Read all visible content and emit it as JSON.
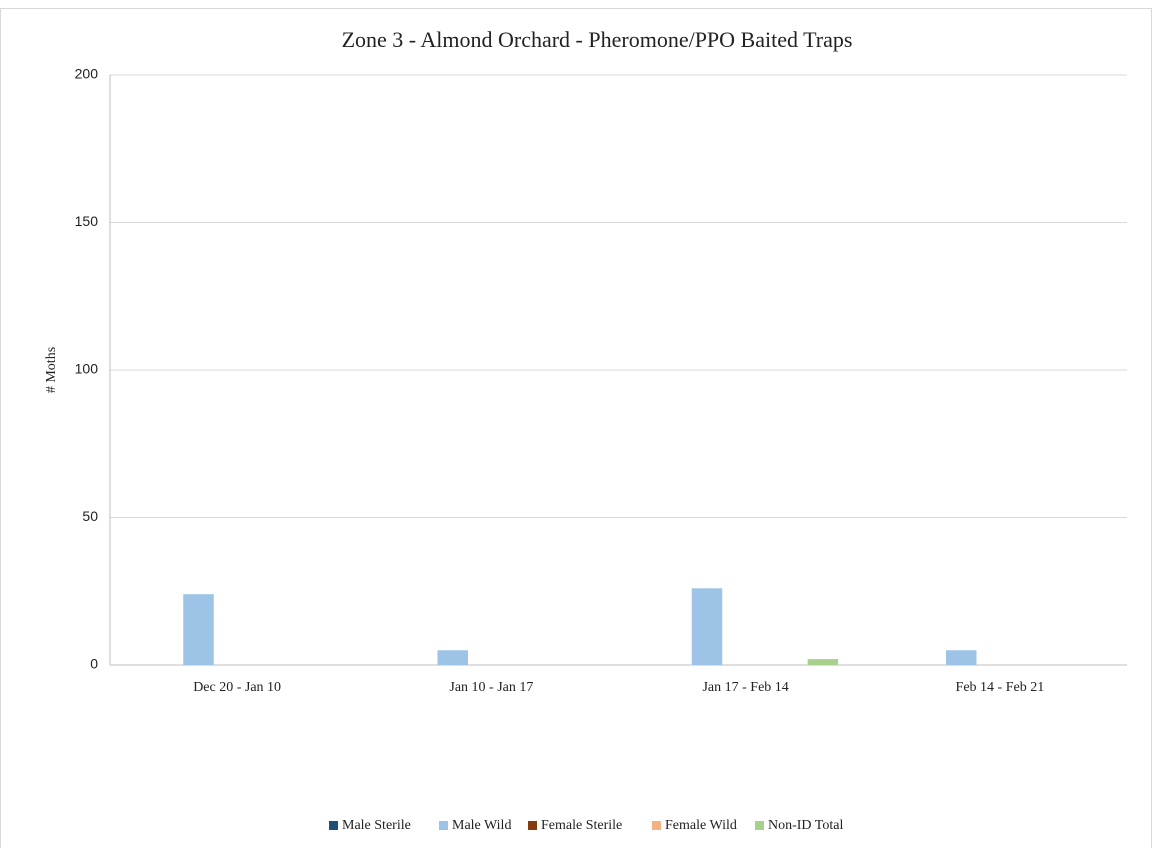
{
  "chart_data": {
    "type": "bar",
    "title": "Zone 3 - Almond Orchard - Pheromone/PPO Baited Traps",
    "ylabel": "# Moths",
    "categories": [
      "Dec 20 - Jan 10",
      "Jan 10 - Jan 17",
      "Jan 17 - Feb 14",
      "Feb 14 - Feb 21"
    ],
    "series": [
      {
        "name": "Male Sterile",
        "color": "#1f4e79",
        "values": [
          0,
          0,
          0,
          0
        ]
      },
      {
        "name": "Male Wild",
        "color": "#9dc3e6",
        "values": [
          24,
          5,
          26,
          5
        ]
      },
      {
        "name": "Female Sterile",
        "color": "#843c0c",
        "values": [
          0,
          0,
          0,
          0
        ]
      },
      {
        "name": "Female Wild",
        "color": "#f4b183",
        "values": [
          0,
          0,
          0,
          0
        ]
      },
      {
        "name": "Non-ID Total",
        "color": "#a9d18e",
        "values": [
          0,
          0,
          2,
          0
        ]
      }
    ],
    "ylim": [
      0,
      200
    ],
    "yticks": [
      0,
      50,
      100,
      150,
      200
    ],
    "grid": true,
    "legend": "bottom"
  }
}
